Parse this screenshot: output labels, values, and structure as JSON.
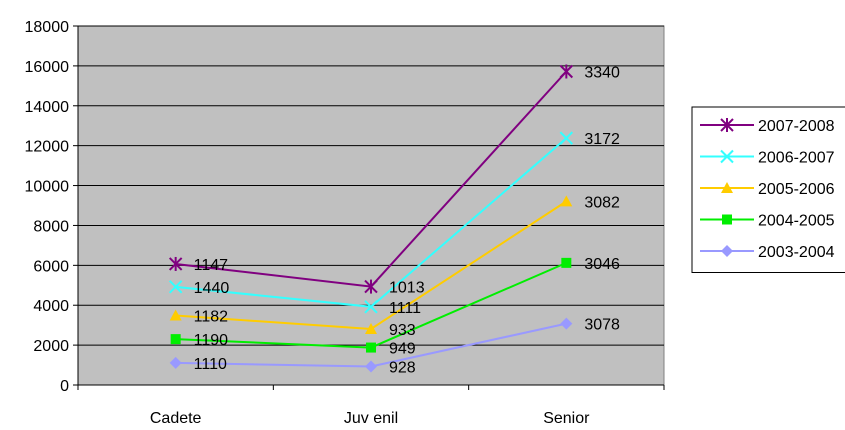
{
  "chart_data": {
    "type": "line",
    "stacked": true,
    "categories": [
      "Cadete",
      "Juv enil",
      "Senior"
    ],
    "ylim": [
      0,
      18000
    ],
    "yticks": [
      0,
      2000,
      4000,
      6000,
      8000,
      10000,
      12000,
      14000,
      16000,
      18000
    ],
    "grid": true,
    "plot_background": "#c0c0c0",
    "legend_position": "right",
    "series": [
      {
        "name": "2003-2004",
        "values": [
          1110,
          928,
          3078
        ],
        "labels": [
          "1110",
          "928",
          "3078"
        ],
        "color": "#9999ff",
        "marker": "diamond"
      },
      {
        "name": "2004-2005",
        "values": [
          1190,
          949,
          3046
        ],
        "labels": [
          "1190",
          "949",
          "3046"
        ],
        "color": "#00ee00",
        "marker": "square"
      },
      {
        "name": "2005-2006",
        "values": [
          1182,
          933,
          3082
        ],
        "labels": [
          "1182",
          "933",
          "3082"
        ],
        "color": "#ffcc00",
        "marker": "triangle"
      },
      {
        "name": "2006-2007",
        "values": [
          1440,
          1111,
          3172
        ],
        "labels": [
          "1440",
          "1111",
          "3172"
        ],
        "color": "#33ffff",
        "marker": "x"
      },
      {
        "name": "2007-2008",
        "values": [
          1147,
          1013,
          3340
        ],
        "labels": [
          "1147",
          "1013",
          "3340"
        ],
        "color": "#800080",
        "marker": "star"
      }
    ]
  }
}
